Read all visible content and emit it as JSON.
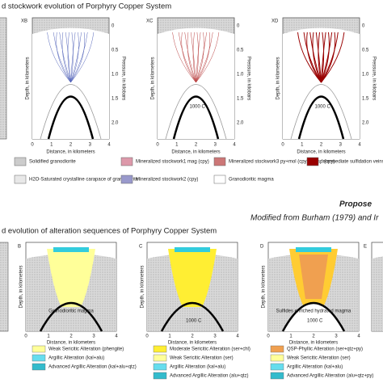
{
  "top": {
    "title": "d stockwork evolution of Porphyry Copper System",
    "panels": [
      {
        "label": "XB"
      },
      {
        "label": "XC",
        "isotherm": "1000 C"
      },
      {
        "label": "XD",
        "isotherm": "1000 C"
      }
    ],
    "depth_axis": "Depth, in kilometers",
    "pressure_axis": "Pressure, in kilobars",
    "distance_axis": "Distance, in kilometers",
    "pressure_ticks": [
      "0",
      "0.5",
      "1.0",
      "1.5",
      "2.0"
    ],
    "distance_ticks": [
      "0",
      "1",
      "2",
      "3",
      "4"
    ],
    "legend": [
      "Solidified granodiorite",
      "H2O-Saturated crystalline carapace of granodiorite",
      "Mineralized stockwork1 mag (cpy)",
      "Mineralized stockwork2 (cpy)",
      "Mineralized stockwork3 py+mol (cpy) py+sp (cpy)",
      "Granodioritic magma",
      "Intermediate sulfidation veins (py+sp+gal+qtz+py)"
    ]
  },
  "caption": {
    "proposed": "Propose",
    "modified": "Modified from Burham (1979) and Ir"
  },
  "bottom": {
    "title": "d evolution of alteration sequences of Porphyry Copper System",
    "panels": [
      {
        "label": "B",
        "magma": "Granodioritic magma"
      },
      {
        "label": "C",
        "isotherm": "1000 C"
      },
      {
        "label": "D",
        "magma": "Sulfides enriched hydrated magma",
        "isotherm": "1000 C"
      },
      {
        "label": "E"
      }
    ],
    "depth_axis": "Depth, in kilometers",
    "distance_axis": "Distance, in kilometers",
    "distance_ticks": [
      "0",
      "1",
      "2",
      "3",
      "4"
    ],
    "legend": [
      [
        "Weak Sericitic Alteration (phengite)",
        "Argillic Alteration (kal+alu)",
        "Advanced Argillic Alteration (kal+alu+qtz)"
      ],
      [
        "Moderate Sericitic Alteration (ser+chl)",
        "Weak Sericitic Alteration (ser)",
        "Argillic Alteration (kal+alu)",
        "Advanced Argillic Alteration (alu+qtz)"
      ],
      [
        "QSP-Phyllic Alteration (ser+qtz+py)",
        "Weak Sericitic Alteration (ser)",
        "Argillic Alteration (kal+alu)",
        "Advanced Argillic Alteration (alu+qtz+py)"
      ]
    ]
  }
}
